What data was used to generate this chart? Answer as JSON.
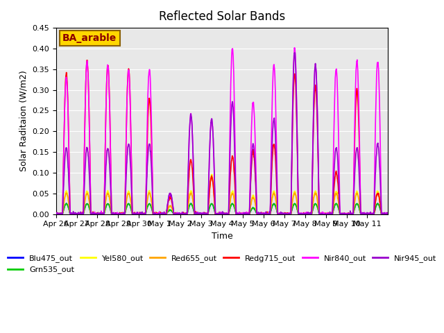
{
  "title": "Reflected Solar Bands",
  "xlabel": "Time",
  "ylabel": "Solar Raditaion (W/m2)",
  "ylim": [
    0,
    0.45
  ],
  "annotation_text": "BA_arable",
  "annotation_color": "#8B0000",
  "annotation_bg": "#FFD700",
  "series": {
    "Blu475_out": {
      "color": "#0000FF",
      "lw": 1.2
    },
    "Grn535_out": {
      "color": "#00CC00",
      "lw": 1.2
    },
    "Yel580_out": {
      "color": "#FFFF00",
      "lw": 1.2
    },
    "Red655_out": {
      "color": "#FFA500",
      "lw": 1.2
    },
    "Redg715_out": {
      "color": "#FF0000",
      "lw": 1.2
    },
    "Nir840_out": {
      "color": "#FF00FF",
      "lw": 1.2
    },
    "Nir945_out": {
      "color": "#9900CC",
      "lw": 1.2
    }
  },
  "xtick_labels": [
    "Apr 26",
    "Apr 27",
    "Apr 28",
    "Apr 29",
    "Apr 30",
    "May 1",
    "May 2",
    "May 3",
    "May 4",
    "May 5",
    "May 6",
    "May 7",
    "May 8",
    "May 9",
    "May 10",
    "May 11"
  ],
  "background_color": "#E8E8E8",
  "grid_color": "#FFFFFF",
  "n_days": 16,
  "day_peaks_nir840": [
    0.33,
    0.37,
    0.36,
    0.35,
    0.35,
    0.05,
    0.24,
    0.23,
    0.4,
    0.27,
    0.36,
    0.4,
    0.36,
    0.35,
    0.37,
    0.37
  ],
  "day_peaks_nir945": [
    0.16,
    0.16,
    0.16,
    0.17,
    0.17,
    0.05,
    0.24,
    0.23,
    0.27,
    0.17,
    0.23,
    0.39,
    0.36,
    0.16,
    0.16,
    0.17
  ],
  "day_peaks_redg715": [
    0.34,
    0.37,
    0.36,
    0.35,
    0.28,
    0.04,
    0.13,
    0.09,
    0.14,
    0.15,
    0.17,
    0.34,
    0.31,
    0.1,
    0.3,
    0.05
  ],
  "day_peaks_red655": [
    0.05,
    0.05,
    0.05,
    0.05,
    0.05,
    0.02,
    0.05,
    0.09,
    0.05,
    0.04,
    0.05,
    0.05,
    0.05,
    0.05,
    0.05,
    0.05
  ],
  "day_peaks_yel580": [
    0.055,
    0.055,
    0.055,
    0.055,
    0.055,
    0.02,
    0.055,
    0.095,
    0.055,
    0.045,
    0.055,
    0.055,
    0.055,
    0.055,
    0.055,
    0.055
  ],
  "day_peaks_grn535": [
    0.025,
    0.025,
    0.025,
    0.025,
    0.025,
    0.01,
    0.025,
    0.025,
    0.025,
    0.015,
    0.025,
    0.025,
    0.025,
    0.025,
    0.025,
    0.025
  ],
  "day_peaks_blu475": [
    0.025,
    0.025,
    0.025,
    0.025,
    0.025,
    0.01,
    0.025,
    0.025,
    0.025,
    0.015,
    0.025,
    0.025,
    0.025,
    0.025,
    0.025,
    0.025
  ]
}
